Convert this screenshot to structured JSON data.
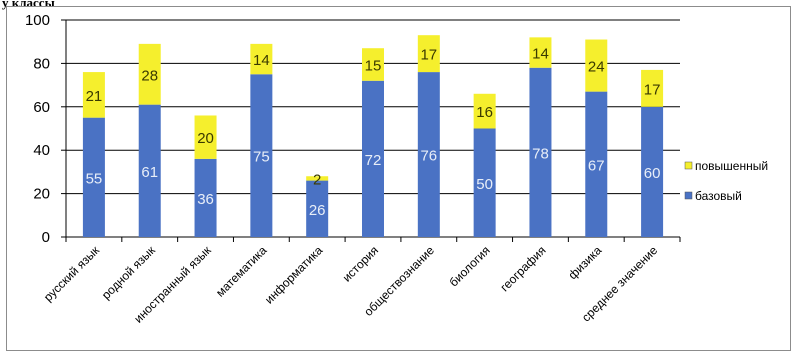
{
  "header": {
    "title": "у классы"
  },
  "chart_data": {
    "type": "bar",
    "stacked": true,
    "categories": [
      "русский язык",
      "родной язык",
      "иностранный язык",
      "математика",
      "информатика",
      "история",
      "обществознание",
      "биология",
      "география",
      "физика",
      "среднее значение"
    ],
    "series": [
      {
        "name": "базовый",
        "values": [
          55,
          61,
          36,
          75,
          26,
          72,
          76,
          50,
          78,
          67,
          60
        ],
        "color": "#4a72c4"
      },
      {
        "name": "повышенный",
        "values": [
          21,
          28,
          20,
          14,
          2,
          15,
          17,
          16,
          14,
          24,
          17
        ],
        "color": "#f5ef2d"
      }
    ],
    "ylim": [
      0,
      100
    ],
    "yticks": [
      0,
      20,
      40,
      60,
      80,
      100
    ],
    "grid": true,
    "legend": "right"
  }
}
